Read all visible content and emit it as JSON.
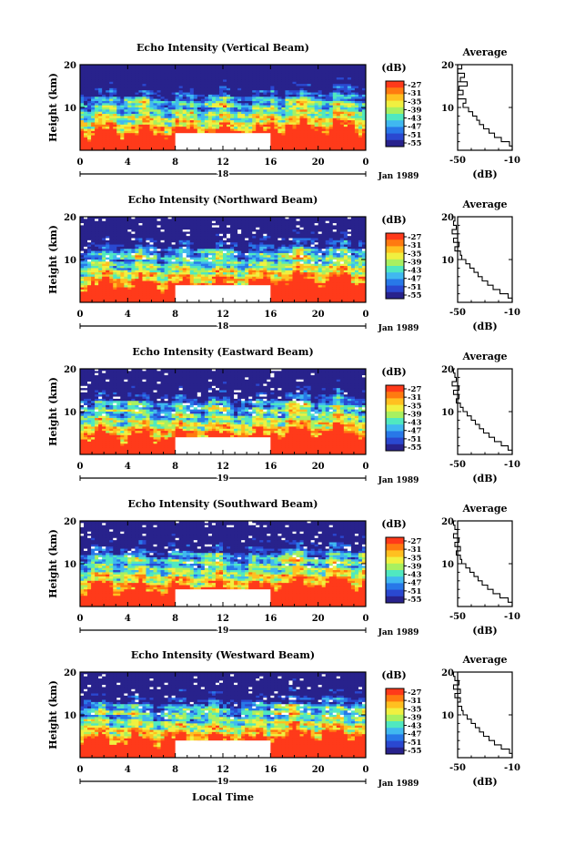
{
  "chart_data": {
    "type": "heatmap",
    "shared": {
      "ylabel": "Height (km)",
      "y_ticks": [
        "20",
        "10"
      ],
      "ylim": [
        0,
        20
      ],
      "x_ticks": [
        "0",
        "4",
        "8",
        "12",
        "16",
        "20",
        "0"
      ],
      "xlim": [
        0,
        24
      ],
      "date_labels": [
        "18",
        "19"
      ],
      "month_label": "Jan 1989",
      "xlabel": "Local Time",
      "missing_interval": [
        8,
        16
      ],
      "missing_height_top": 4,
      "colorbar_label": "(dB)",
      "colorbar_ticks": [
        "-27",
        "-31",
        "-35",
        "-39",
        "-43",
        "-47",
        "-51",
        "-55"
      ],
      "colorbar_colors": [
        "#ff3a1a",
        "#ff7a10",
        "#ffc020",
        "#f0f040",
        "#a8f060",
        "#50e8c0",
        "#40b8f0",
        "#2878e8",
        "#2a48d0",
        "#28228c"
      ],
      "avg_title": "Average",
      "avg_xlabel": "(dB)",
      "avg_x_ticks": [
        "-50",
        "-10"
      ],
      "avg_xlim": [
        -50,
        -10
      ],
      "avg_y_ticks": [
        "20",
        "10"
      ],
      "avg_height_km": [
        0,
        1,
        2,
        3,
        4,
        5,
        6,
        7,
        8,
        9,
        10,
        11,
        12,
        13,
        14,
        15,
        16,
        17,
        18,
        19,
        20
      ]
    },
    "panels": [
      {
        "title": "Echo Intensity (Vertical Beam)",
        "date_index": 0,
        "average_db": [
          -10,
          -12,
          -18,
          -23,
          -27,
          -31,
          -34,
          -36,
          -39,
          -42,
          -46,
          -44,
          -50,
          -46,
          -49,
          -43,
          -48,
          -45,
          -50,
          -47,
          -52
        ]
      },
      {
        "title": "Echo Intensity (Northward Beam)",
        "date_index": 0,
        "average_db": [
          -10,
          -13,
          -19,
          -24,
          -28,
          -32,
          -35,
          -38,
          -41,
          -44,
          -47,
          -48,
          -52,
          -49,
          -53,
          -50,
          -54,
          -51,
          -53,
          -52,
          -53
        ]
      },
      {
        "title": "Echo Intensity (Eastward Beam)",
        "date_index": 1,
        "average_db": [
          -10,
          -13,
          -18,
          -23,
          -27,
          -31,
          -34,
          -37,
          -40,
          -43,
          -46,
          -48,
          -51,
          -49,
          -53,
          -49,
          -54,
          -51,
          -52,
          -53,
          -52
        ]
      },
      {
        "title": "Echo Intensity (Southward Beam)",
        "date_index": 1,
        "average_db": [
          -10,
          -13,
          -19,
          -24,
          -28,
          -32,
          -35,
          -38,
          -41,
          -44,
          -47,
          -48,
          -51,
          -48,
          -52,
          -49,
          -53,
          -50,
          -52,
          -53,
          -51
        ]
      },
      {
        "title": "Echo Intensity (Westward Beam)",
        "date_index": 1,
        "average_db": [
          -10,
          -12,
          -18,
          -23,
          -27,
          -31,
          -34,
          -37,
          -40,
          -43,
          -46,
          -47,
          -50,
          -48,
          -52,
          -48,
          -53,
          -49,
          -52,
          -53,
          -50
        ]
      }
    ]
  }
}
